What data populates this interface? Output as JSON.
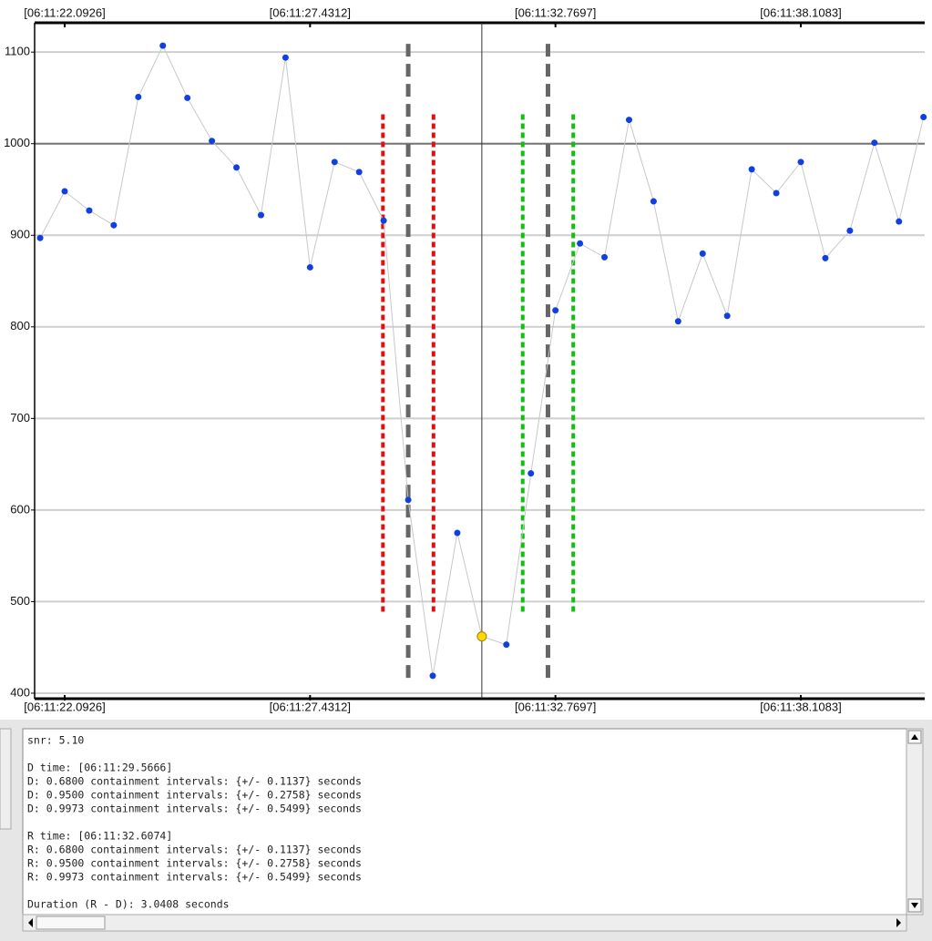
{
  "chart_data": {
    "type": "line",
    "x": [
      21.5587,
      22.0926,
      22.6265,
      23.1603,
      23.6942,
      24.2281,
      24.7619,
      25.2958,
      25.8297,
      26.3635,
      26.8974,
      27.4312,
      27.9651,
      28.499,
      29.0328,
      29.5667,
      30.1006,
      30.6344,
      31.1683,
      31.7022,
      32.236,
      32.7699,
      33.3038,
      33.8376,
      34.3715,
      34.9053,
      35.4392,
      35.9731,
      36.5069,
      37.0408,
      37.5747,
      38.1085,
      38.6424,
      39.1763,
      39.7101,
      40.244,
      40.7779
    ],
    "series": [
      {
        "color": "#1040e0",
        "line_color": "#c8c8c8",
        "values": [
          897,
          948,
          927,
          911,
          1051,
          1107,
          1050,
          1003,
          974,
          922,
          1094,
          865,
          980,
          969,
          916,
          611,
          419,
          575,
          462,
          453,
          640,
          818,
          891,
          876,
          1026,
          937,
          806,
          880,
          812,
          972,
          946,
          980,
          875,
          905,
          1001,
          915,
          1029
        ]
      }
    ],
    "highlight": {
      "index": 18,
      "color": "#ffd800"
    },
    "xlim": [
      21.4384,
      40.804
    ],
    "xticks": [
      {
        "value": 22.0926,
        "label": "[06:11:22.0926]"
      },
      {
        "value": 27.4312,
        "label": "[06:11:27.4312]"
      },
      {
        "value": 32.7697,
        "label": "[06:11:32.7697]"
      },
      {
        "value": 38.1083,
        "label": "[06:11:38.1083]"
      }
    ],
    "ylim": [
      394,
      1132
    ],
    "yticks": [
      400,
      500,
      600,
      700,
      800,
      900,
      1000,
      1100
    ],
    "grid": true,
    "hline": 1000,
    "vlines": [
      {
        "x": 29.5666,
        "color": "#666666",
        "style": "dash",
        "ylim": [
          415,
          1109
        ]
      },
      {
        "x": 29.0167,
        "color": "#e01010",
        "style": "dot",
        "ylim": [
          485,
          1032
        ]
      },
      {
        "x": 30.1165,
        "color": "#e01010",
        "style": "dot",
        "ylim": [
          485,
          1032
        ]
      },
      {
        "x": 32.6074,
        "color": "#666666",
        "style": "dash",
        "ylim": [
          415,
          1109
        ]
      },
      {
        "x": 32.0575,
        "color": "#10c010",
        "style": "dot",
        "ylim": [
          485,
          1032
        ]
      },
      {
        "x": 33.1573,
        "color": "#10c010",
        "style": "dot",
        "ylim": [
          485,
          1032
        ]
      },
      {
        "x": 31.1683,
        "color": "#333333",
        "style": "solid"
      }
    ]
  },
  "text_panel": {
    "paragraphs": [
      [
        "snr: 5.10"
      ],
      [
        "D time: [06:11:29.5666]",
        "D: 0.6800 containment intervals: {+/- 0.1137} seconds",
        "D: 0.9500 containment intervals: {+/- 0.2758} seconds",
        "D: 0.9973 containment intervals: {+/- 0.5499} seconds"
      ],
      [
        "R time: [06:11:32.6074]",
        "R: 0.6800 containment intervals: {+/- 0.1137} seconds",
        "R: 0.9500 containment intervals: {+/- 0.2758} seconds",
        "R: 0.9973 containment intervals: {+/- 0.5499} seconds"
      ],
      [
        "Duration (R - D): 3.0408 seconds"
      ]
    ]
  }
}
